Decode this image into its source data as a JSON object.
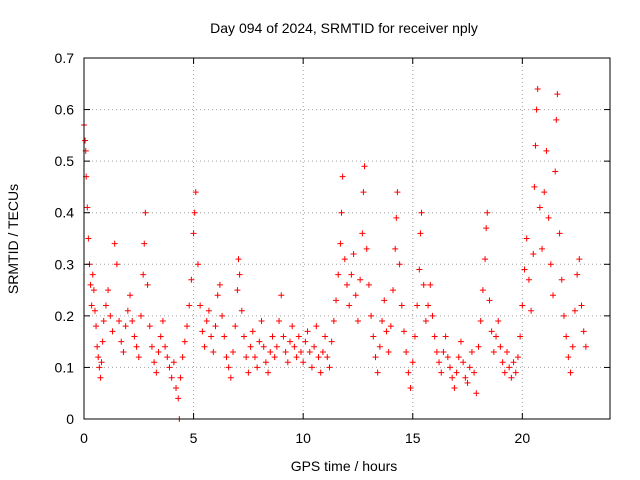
{
  "chart_data": {
    "type": "scatter",
    "title": "Day 094 of 2024, SRMTID for receiver nply",
    "xlabel": "GPS time / hours",
    "ylabel": "SRMTID / TECUs",
    "xlim": [
      0,
      24
    ],
    "ylim": [
      0,
      0.7
    ],
    "x_ticks": [
      0,
      5,
      10,
      15,
      20
    ],
    "y_ticks": [
      0,
      0.1,
      0.2,
      0.3,
      0.4,
      0.5,
      0.6,
      0.7
    ],
    "x_tick_labels": [
      "0",
      "5",
      "10",
      "15",
      "20"
    ],
    "y_tick_labels": [
      "0",
      "0.1",
      "0.2",
      "0.3",
      "0.4",
      "0.5",
      "0.6",
      "0.7"
    ],
    "grid": true,
    "marker": "+",
    "series": [
      {
        "name": "SRMTID",
        "color": "#ff0000",
        "points": [
          [
            0.0,
            0.57
          ],
          [
            0.05,
            0.54
          ],
          [
            0.08,
            0.52
          ],
          [
            0.1,
            0.47
          ],
          [
            0.15,
            0.41
          ],
          [
            0.2,
            0.35
          ],
          [
            0.25,
            0.3
          ],
          [
            0.3,
            0.26
          ],
          [
            0.35,
            0.22
          ],
          [
            0.4,
            0.28
          ],
          [
            0.45,
            0.25
          ],
          [
            0.5,
            0.21
          ],
          [
            0.55,
            0.18
          ],
          [
            0.6,
            0.14
          ],
          [
            0.65,
            0.12
          ],
          [
            0.7,
            0.1
          ],
          [
            0.75,
            0.08
          ],
          [
            0.8,
            0.11
          ],
          [
            0.85,
            0.15
          ],
          [
            0.9,
            0.19
          ],
          [
            1.0,
            0.22
          ],
          [
            1.1,
            0.25
          ],
          [
            1.2,
            0.2
          ],
          [
            1.3,
            0.17
          ],
          [
            1.4,
            0.34
          ],
          [
            1.5,
            0.3
          ],
          [
            1.6,
            0.19
          ],
          [
            1.7,
            0.15
          ],
          [
            1.8,
            0.13
          ],
          [
            1.9,
            0.18
          ],
          [
            2.0,
            0.21
          ],
          [
            2.1,
            0.24
          ],
          [
            2.2,
            0.19
          ],
          [
            2.3,
            0.16
          ],
          [
            2.4,
            0.14
          ],
          [
            2.5,
            0.12
          ],
          [
            2.6,
            0.2
          ],
          [
            2.7,
            0.28
          ],
          [
            2.75,
            0.34
          ],
          [
            2.8,
            0.4
          ],
          [
            2.9,
            0.26
          ],
          [
            3.0,
            0.18
          ],
          [
            3.1,
            0.14
          ],
          [
            3.2,
            0.11
          ],
          [
            3.3,
            0.09
          ],
          [
            3.4,
            0.13
          ],
          [
            3.5,
            0.16
          ],
          [
            3.6,
            0.19
          ],
          [
            3.7,
            0.14
          ],
          [
            3.8,
            0.12
          ],
          [
            3.9,
            0.1
          ],
          [
            4.0,
            0.08
          ],
          [
            4.1,
            0.11
          ],
          [
            4.2,
            0.06
          ],
          [
            4.3,
            0.04
          ],
          [
            4.35,
            0.0
          ],
          [
            4.4,
            0.08
          ],
          [
            4.5,
            0.12
          ],
          [
            4.6,
            0.15
          ],
          [
            4.7,
            0.18
          ],
          [
            4.8,
            0.22
          ],
          [
            4.9,
            0.27
          ],
          [
            5.0,
            0.36
          ],
          [
            5.05,
            0.4
          ],
          [
            5.1,
            0.44
          ],
          [
            5.2,
            0.3
          ],
          [
            5.3,
            0.22
          ],
          [
            5.4,
            0.17
          ],
          [
            5.5,
            0.14
          ],
          [
            5.6,
            0.19
          ],
          [
            5.7,
            0.21
          ],
          [
            5.8,
            0.16
          ],
          [
            5.9,
            0.13
          ],
          [
            6.0,
            0.18
          ],
          [
            6.1,
            0.24
          ],
          [
            6.2,
            0.26
          ],
          [
            6.3,
            0.2
          ],
          [
            6.4,
            0.16
          ],
          [
            6.5,
            0.12
          ],
          [
            6.6,
            0.1
          ],
          [
            6.7,
            0.08
          ],
          [
            6.8,
            0.13
          ],
          [
            6.9,
            0.18
          ],
          [
            7.0,
            0.25
          ],
          [
            7.05,
            0.31
          ],
          [
            7.1,
            0.28
          ],
          [
            7.2,
            0.21
          ],
          [
            7.3,
            0.16
          ],
          [
            7.4,
            0.12
          ],
          [
            7.5,
            0.09
          ],
          [
            7.6,
            0.14
          ],
          [
            7.7,
            0.17
          ],
          [
            7.8,
            0.12
          ],
          [
            7.9,
            0.1
          ],
          [
            8.0,
            0.15
          ],
          [
            8.1,
            0.19
          ],
          [
            8.2,
            0.14
          ],
          [
            8.3,
            0.11
          ],
          [
            8.4,
            0.09
          ],
          [
            8.5,
            0.13
          ],
          [
            8.6,
            0.16
          ],
          [
            8.7,
            0.12
          ],
          [
            8.8,
            0.14
          ],
          [
            8.9,
            0.19
          ],
          [
            9.0,
            0.24
          ],
          [
            9.1,
            0.16
          ],
          [
            9.2,
            0.13
          ],
          [
            9.3,
            0.11
          ],
          [
            9.4,
            0.15
          ],
          [
            9.5,
            0.18
          ],
          [
            9.6,
            0.14
          ],
          [
            9.7,
            0.12
          ],
          [
            9.8,
            0.16
          ],
          [
            9.9,
            0.13
          ],
          [
            10.0,
            0.11
          ],
          [
            10.1,
            0.15
          ],
          [
            10.2,
            0.17
          ],
          [
            10.3,
            0.13
          ],
          [
            10.4,
            0.1
          ],
          [
            10.5,
            0.14
          ],
          [
            10.6,
            0.18
          ],
          [
            10.7,
            0.12
          ],
          [
            10.8,
            0.09
          ],
          [
            10.9,
            0.13
          ],
          [
            11.0,
            0.16
          ],
          [
            11.1,
            0.12
          ],
          [
            11.2,
            0.1
          ],
          [
            11.3,
            0.15
          ],
          [
            11.4,
            0.19
          ],
          [
            11.5,
            0.23
          ],
          [
            11.6,
            0.28
          ],
          [
            11.7,
            0.34
          ],
          [
            11.75,
            0.4
          ],
          [
            11.8,
            0.47
          ],
          [
            11.9,
            0.31
          ],
          [
            12.0,
            0.26
          ],
          [
            12.1,
            0.22
          ],
          [
            12.2,
            0.28
          ],
          [
            12.3,
            0.32
          ],
          [
            12.4,
            0.24
          ],
          [
            12.5,
            0.19
          ],
          [
            12.6,
            0.27
          ],
          [
            12.7,
            0.36
          ],
          [
            12.75,
            0.44
          ],
          [
            12.8,
            0.49
          ],
          [
            12.9,
            0.33
          ],
          [
            13.0,
            0.26
          ],
          [
            13.1,
            0.2
          ],
          [
            13.2,
            0.16
          ],
          [
            13.3,
            0.12
          ],
          [
            13.4,
            0.09
          ],
          [
            13.5,
            0.14
          ],
          [
            13.6,
            0.19
          ],
          [
            13.7,
            0.23
          ],
          [
            13.8,
            0.17
          ],
          [
            13.9,
            0.13
          ],
          [
            14.0,
            0.18
          ],
          [
            14.1,
            0.25
          ],
          [
            14.2,
            0.33
          ],
          [
            14.25,
            0.39
          ],
          [
            14.3,
            0.44
          ],
          [
            14.4,
            0.3
          ],
          [
            14.5,
            0.22
          ],
          [
            14.6,
            0.17
          ],
          [
            14.7,
            0.13
          ],
          [
            14.8,
            0.09
          ],
          [
            14.9,
            0.06
          ],
          [
            15.0,
            0.11
          ],
          [
            15.1,
            0.16
          ],
          [
            15.2,
            0.22
          ],
          [
            15.3,
            0.29
          ],
          [
            15.35,
            0.36
          ],
          [
            15.4,
            0.4
          ],
          [
            15.5,
            0.26
          ],
          [
            15.6,
            0.19
          ],
          [
            15.7,
            0.22
          ],
          [
            15.8,
            0.26
          ],
          [
            15.9,
            0.2
          ],
          [
            16.0,
            0.16
          ],
          [
            16.1,
            0.13
          ],
          [
            16.2,
            0.11
          ],
          [
            16.3,
            0.09
          ],
          [
            16.4,
            0.13
          ],
          [
            16.5,
            0.16
          ],
          [
            16.6,
            0.12
          ],
          [
            16.7,
            0.1
          ],
          [
            16.8,
            0.08
          ],
          [
            16.9,
            0.06
          ],
          [
            17.0,
            0.09
          ],
          [
            17.1,
            0.12
          ],
          [
            17.2,
            0.15
          ],
          [
            17.3,
            0.11
          ],
          [
            17.4,
            0.08
          ],
          [
            17.5,
            0.07
          ],
          [
            17.6,
            0.1
          ],
          [
            17.7,
            0.13
          ],
          [
            17.8,
            0.09
          ],
          [
            17.9,
            0.05
          ],
          [
            18.0,
            0.14
          ],
          [
            18.1,
            0.19
          ],
          [
            18.2,
            0.25
          ],
          [
            18.3,
            0.31
          ],
          [
            18.35,
            0.37
          ],
          [
            18.4,
            0.4
          ],
          [
            18.5,
            0.23
          ],
          [
            18.6,
            0.17
          ],
          [
            18.7,
            0.13
          ],
          [
            18.8,
            0.16
          ],
          [
            18.9,
            0.19
          ],
          [
            19.0,
            0.14
          ],
          [
            19.1,
            0.11
          ],
          [
            19.2,
            0.09
          ],
          [
            19.3,
            0.13
          ],
          [
            19.4,
            0.1
          ],
          [
            19.5,
            0.08
          ],
          [
            19.6,
            0.11
          ],
          [
            19.7,
            0.09
          ],
          [
            19.8,
            0.12
          ],
          [
            19.9,
            0.16
          ],
          [
            20.0,
            0.22
          ],
          [
            20.1,
            0.29
          ],
          [
            20.2,
            0.35
          ],
          [
            20.3,
            0.27
          ],
          [
            20.4,
            0.21
          ],
          [
            20.5,
            0.32
          ],
          [
            20.55,
            0.45
          ],
          [
            20.6,
            0.53
          ],
          [
            20.65,
            0.6
          ],
          [
            20.7,
            0.64
          ],
          [
            20.8,
            0.41
          ],
          [
            20.9,
            0.33
          ],
          [
            21.0,
            0.44
          ],
          [
            21.1,
            0.52
          ],
          [
            21.2,
            0.39
          ],
          [
            21.3,
            0.3
          ],
          [
            21.4,
            0.24
          ],
          [
            21.5,
            0.48
          ],
          [
            21.55,
            0.58
          ],
          [
            21.6,
            0.63
          ],
          [
            21.7,
            0.36
          ],
          [
            21.8,
            0.27
          ],
          [
            21.9,
            0.2
          ],
          [
            22.0,
            0.16
          ],
          [
            22.1,
            0.12
          ],
          [
            22.2,
            0.09
          ],
          [
            22.3,
            0.14
          ],
          [
            22.4,
            0.21
          ],
          [
            22.5,
            0.28
          ],
          [
            22.6,
            0.31
          ],
          [
            22.7,
            0.22
          ],
          [
            22.8,
            0.17
          ],
          [
            22.9,
            0.14
          ]
        ]
      }
    ]
  }
}
